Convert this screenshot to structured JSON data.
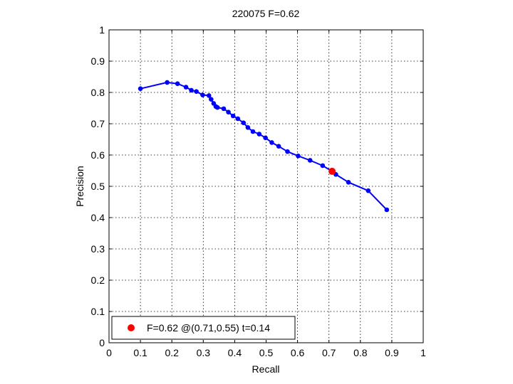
{
  "chart_data": {
    "type": "line",
    "title": "220075 F=0.62",
    "xlabel": "Recall",
    "ylabel": "Precision",
    "xlim": [
      0,
      1
    ],
    "ylim": [
      0,
      1
    ],
    "xticks": [
      "0",
      "0.1",
      "0.2",
      "0.3",
      "0.4",
      "0.5",
      "0.6",
      "0.7",
      "0.8",
      "0.9",
      "1"
    ],
    "yticks": [
      "0",
      "0.1",
      "0.2",
      "0.3",
      "0.4",
      "0.5",
      "0.6",
      "0.7",
      "0.8",
      "0.9",
      "1"
    ],
    "grid": true,
    "legend_position": "bottom-left",
    "series": [
      {
        "color": "#0000ff",
        "x": [
          0.1,
          0.185,
          0.218,
          0.245,
          0.262,
          0.278,
          0.298,
          0.318,
          0.325,
          0.333,
          0.34,
          0.345,
          0.365,
          0.38,
          0.395,
          0.41,
          0.428,
          0.442,
          0.458,
          0.478,
          0.498,
          0.518,
          0.54,
          0.568,
          0.602,
          0.64,
          0.68,
          0.71,
          0.722,
          0.762,
          0.825,
          0.884
        ],
        "y": [
          0.812,
          0.832,
          0.828,
          0.817,
          0.807,
          0.803,
          0.792,
          0.79,
          0.778,
          0.765,
          0.755,
          0.752,
          0.748,
          0.737,
          0.725,
          0.716,
          0.703,
          0.688,
          0.675,
          0.667,
          0.655,
          0.64,
          0.628,
          0.611,
          0.597,
          0.583,
          0.566,
          0.548,
          0.538,
          0.513,
          0.486,
          0.425
        ]
      }
    ],
    "highlight": {
      "x": 0.71,
      "y": 0.548,
      "color": "#ff0000",
      "legend_label": "F=0.62 @(0.71,0.55) t=0.14"
    }
  }
}
